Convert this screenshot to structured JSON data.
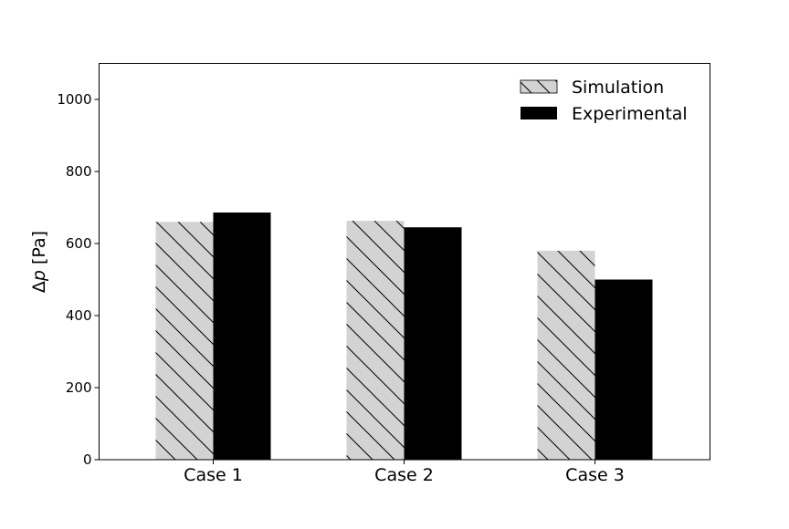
{
  "chart_data": {
    "type": "bar",
    "title": "",
    "xlabel": "",
    "ylabel": "Δp [Pa]",
    "ylabel_parts": {
      "delta": "Δ",
      "var": "p",
      "unit": " [Pa]"
    },
    "categories": [
      "Case 1",
      "Case 2",
      "Case 3"
    ],
    "series": [
      {
        "name": "Simulation",
        "values": [
          660,
          663,
          580
        ],
        "fill": "#d3d3d3",
        "hatch": "\\",
        "edge": "#000000"
      },
      {
        "name": "Experimental",
        "values": [
          686,
          645,
          500
        ],
        "fill": "#000000",
        "hatch": "",
        "edge": "#000000"
      }
    ],
    "ylim": [
      0,
      1100
    ],
    "yticks": [
      0,
      200,
      400,
      600,
      800,
      1000
    ],
    "grid": false,
    "legend_position": "top-right"
  }
}
